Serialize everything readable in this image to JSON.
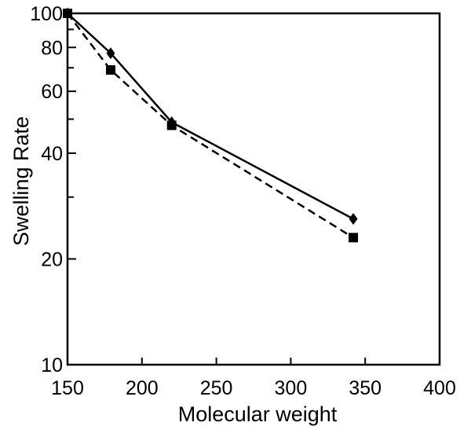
{
  "chart_data": {
    "type": "line",
    "xlabel": "Molecular weight",
    "ylabel": "Swelling Rate",
    "xlim": [
      150,
      400
    ],
    "ylim": [
      10,
      100
    ],
    "y_scale": "log",
    "x_ticks": [
      150,
      200,
      250,
      300,
      350,
      400
    ],
    "x_tick_labels": [
      "150",
      "200",
      "250",
      "300",
      "350",
      "400"
    ],
    "y_labeled_ticks": [
      10,
      20,
      40,
      60,
      80,
      100
    ],
    "y_tick_labels": [
      "10",
      "20",
      "40",
      "60",
      "80",
      "100"
    ],
    "y_minor_ticks": [
      30,
      50,
      70,
      90
    ],
    "grid": false,
    "legend": "none",
    "series": [
      {
        "marker": "diamond",
        "line_style": "solid",
        "color": "#000000",
        "x": [
          150,
          179,
          220,
          342
        ],
        "y": [
          100,
          77,
          49,
          26
        ]
      },
      {
        "marker": "square",
        "line_style": "dashed",
        "color": "#000000",
        "x": [
          150,
          179,
          220,
          342
        ],
        "y": [
          100,
          69,
          48,
          23
        ]
      }
    ]
  }
}
